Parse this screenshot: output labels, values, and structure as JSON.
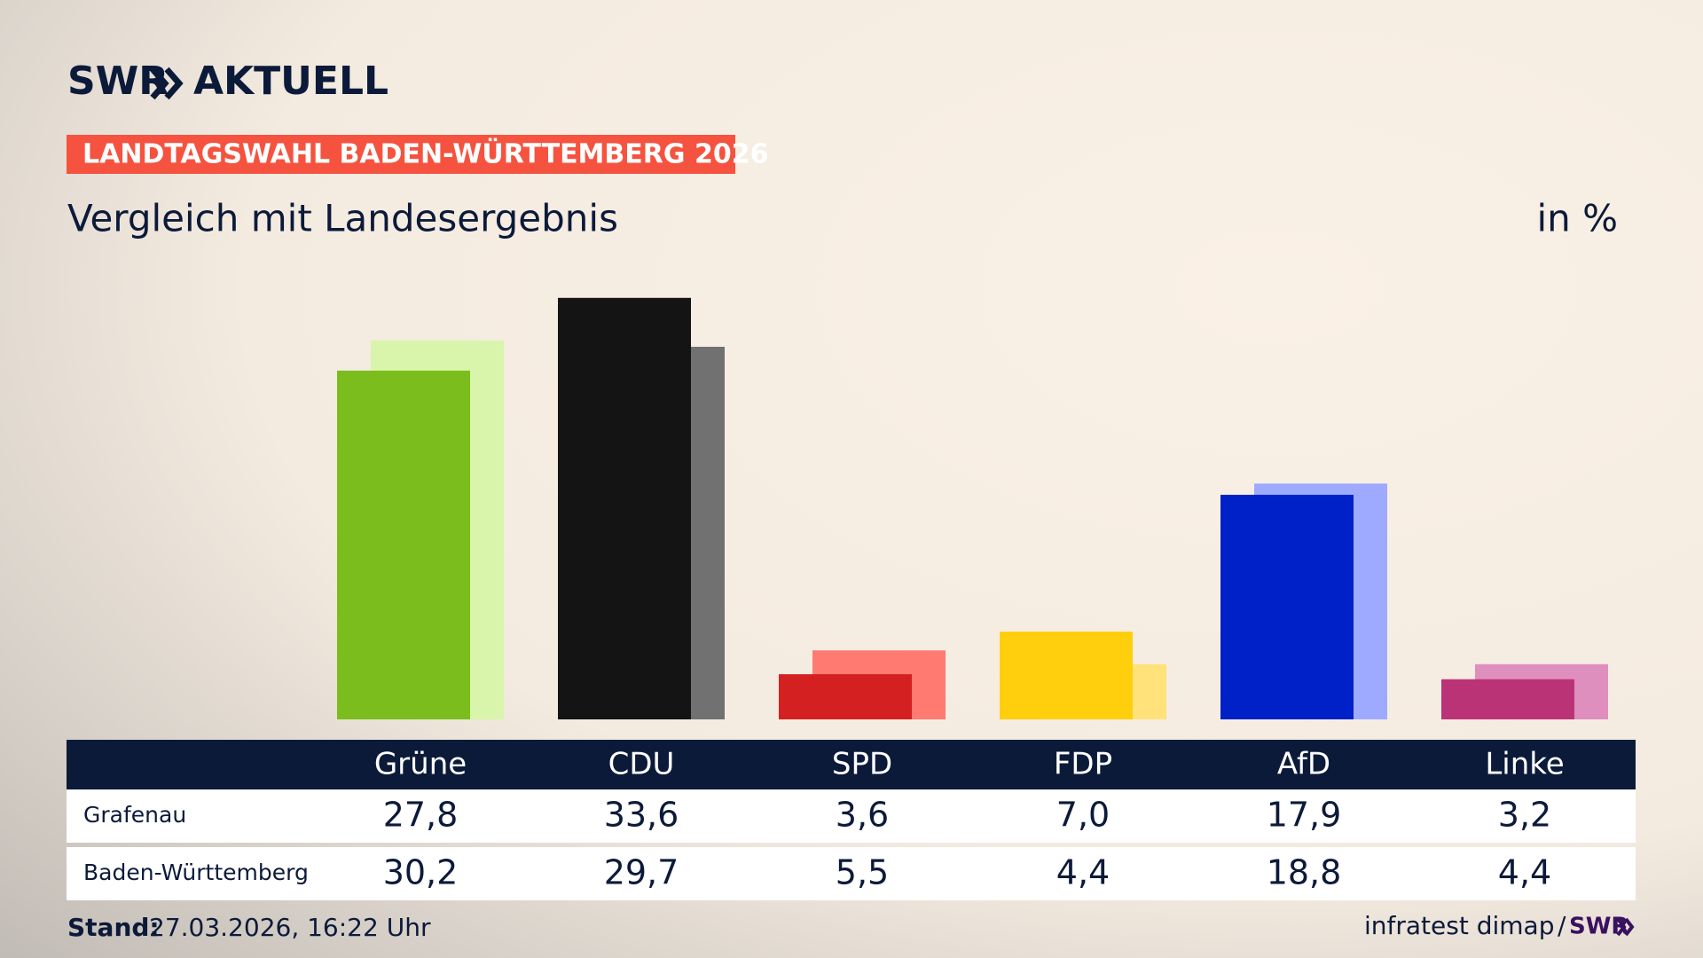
{
  "logo": {
    "brand": "SWR",
    "product": "AKTUELL"
  },
  "chart_data": {
    "type": "bar",
    "kicker": "LANDTAGSWAHL BADEN-WÜRTTEMBERG 2026",
    "title": "Vergleich mit Landesergebnis",
    "unit": "in %",
    "categories": [
      "Grüne",
      "CDU",
      "SPD",
      "FDP",
      "AfD",
      "Linke"
    ],
    "ylim": [
      0,
      35
    ],
    "series": [
      {
        "name": "Grafenau",
        "colors": [
          "#7abd1c",
          "#141414",
          "#d42020",
          "#ffcf0d",
          "#0020c8",
          "#bb3377"
        ],
        "values": [
          27.8,
          33.6,
          3.6,
          7.0,
          17.9,
          3.2
        ],
        "value_labels": [
          "27,8",
          "33,6",
          "3,6",
          "7,0",
          "17,9",
          "3,2"
        ]
      },
      {
        "name": "Baden-Württemberg",
        "colors": [
          "#d8f5ab",
          "#717171",
          "#ff7a70",
          "#ffe27a",
          "#9eaaff",
          "#df8fbe"
        ],
        "values": [
          30.2,
          29.7,
          5.5,
          4.4,
          18.8,
          4.4
        ],
        "value_labels": [
          "30,2",
          "29,7",
          "5,5",
          "4,4",
          "18,8",
          "4,4"
        ]
      }
    ]
  },
  "footer": {
    "stand_label": "Stand:",
    "stand": "27.03.2026, 16:22 Uhr",
    "source": "infratest dimap",
    "separator": "/",
    "brand": "SWR"
  }
}
